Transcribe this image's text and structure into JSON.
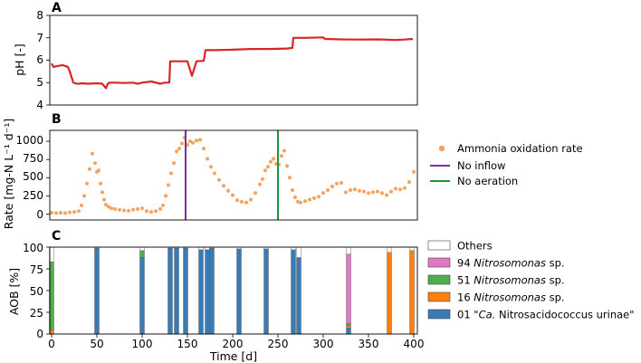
{
  "colors": {
    "ph_line": "#d62728",
    "rate_points": "#f4a460",
    "no_inflow": "#7b3294",
    "no_aeration": "#1a9641",
    "others": "#ffffff",
    "nitro94": "#e377c2",
    "nitro51": "#4daf4a",
    "nitro16": "#ff7f0e",
    "urinae01": "#3b7bb3"
  },
  "chart_data": [
    {
      "panel": "A",
      "type": "line",
      "ylabel": "pH [-]",
      "xlim": [
        -2,
        404
      ],
      "ylim": [
        4,
        8
      ],
      "yticks": [
        4,
        5,
        6,
        7,
        8
      ],
      "x": [
        0,
        2,
        4,
        8,
        12,
        18,
        20,
        24,
        28,
        30,
        34,
        40,
        50,
        56,
        60,
        62,
        64,
        70,
        80,
        90,
        95,
        100,
        110,
        120,
        125,
        128,
        130,
        131,
        140,
        150,
        155,
        160,
        168,
        170,
        180,
        200,
        220,
        240,
        260,
        266,
        267,
        280,
        300,
        302,
        320,
        340,
        360,
        380,
        390,
        399
      ],
      "values": [
        5.85,
        5.7,
        5.72,
        5.75,
        5.78,
        5.7,
        5.5,
        5.0,
        4.95,
        4.95,
        4.97,
        4.95,
        4.97,
        4.95,
        4.75,
        4.95,
        5.0,
        5.0,
        4.98,
        5.0,
        4.95,
        5.0,
        5.05,
        4.95,
        5.0,
        5.0,
        5.0,
        5.95,
        5.95,
        5.95,
        5.3,
        5.95,
        5.97,
        6.45,
        6.45,
        6.47,
        6.5,
        6.5,
        6.52,
        6.55,
        7.0,
        7.0,
        7.02,
        6.95,
        6.93,
        6.92,
        6.93,
        6.9,
        6.92,
        6.95
      ]
    },
    {
      "panel": "B",
      "type": "scatter",
      "ylabel": "Rate [mg-N L⁻¹ d⁻¹]",
      "xlim": [
        -2,
        404
      ],
      "ylim": [
        -80,
        1150
      ],
      "yticks": [
        0,
        250,
        500,
        750,
        1000
      ],
      "series": [
        {
          "name": "Ammonia oxidation rate"
        }
      ],
      "x": [
        0,
        5,
        10,
        15,
        20,
        25,
        30,
        33,
        36,
        39,
        42,
        45,
        48,
        50,
        52,
        54,
        56,
        58,
        60,
        63,
        66,
        70,
        75,
        80,
        85,
        90,
        95,
        100,
        105,
        110,
        115,
        120,
        123,
        126,
        129,
        132,
        135,
        138,
        141,
        144,
        147,
        150,
        153,
        156,
        160,
        164,
        168,
        172,
        176,
        180,
        185,
        190,
        195,
        200,
        205,
        210,
        215,
        220,
        225,
        230,
        233,
        236,
        239,
        242,
        245,
        248,
        251,
        254,
        257,
        260,
        263,
        266,
        269,
        272,
        275,
        280,
        285,
        290,
        295,
        300,
        305,
        310,
        315,
        320,
        325,
        330,
        335,
        340,
        345,
        350,
        355,
        360,
        365,
        370,
        375,
        380,
        385,
        390,
        395,
        400
      ],
      "values": [
        20,
        15,
        20,
        15,
        25,
        30,
        40,
        120,
        250,
        420,
        620,
        830,
        700,
        580,
        600,
        420,
        300,
        200,
        130,
        100,
        80,
        70,
        60,
        50,
        45,
        60,
        70,
        80,
        40,
        30,
        40,
        70,
        120,
        250,
        400,
        560,
        700,
        860,
        900,
        970,
        1050,
        950,
        1000,
        980,
        1010,
        1020,
        900,
        760,
        650,
        560,
        470,
        390,
        320,
        260,
        190,
        170,
        160,
        200,
        290,
        410,
        480,
        600,
        650,
        720,
        760,
        690,
        680,
        800,
        870,
        660,
        500,
        330,
        230,
        170,
        160,
        180,
        200,
        220,
        240,
        290,
        330,
        380,
        420,
        430,
        300,
        330,
        340,
        320,
        310,
        290,
        300,
        310,
        290,
        260,
        310,
        350,
        340,
        360,
        440,
        580
      ]
    },
    {
      "panel": "C",
      "type": "bar",
      "stacked": true,
      "xlabel": "Time [d]",
      "ylabel": "AOB [%]",
      "xlim": [
        -2,
        404
      ],
      "ylim": [
        0,
        100
      ],
      "yticks": [
        0,
        25,
        50,
        75,
        100
      ],
      "xticks": [
        0,
        50,
        100,
        150,
        200,
        250,
        300,
        350,
        400
      ],
      "x": [
        0,
        50,
        100,
        131,
        138,
        148,
        165,
        172,
        177,
        207,
        237,
        267,
        273,
        328,
        373,
        398
      ],
      "series": [
        {
          "name": "01 \"Ca. Nitrosacidococcus urinae\"",
          "values": [
            0,
            99,
            88,
            99,
            99,
            99,
            97,
            97,
            99,
            98,
            98,
            97,
            88,
            7,
            0,
            0
          ]
        },
        {
          "name": "16 Nitrosomonas sp.",
          "values": [
            5,
            0,
            0,
            0,
            0,
            0,
            0,
            0,
            0,
            0,
            0,
            0,
            0,
            3,
            94,
            96
          ]
        },
        {
          "name": "51 Nitrosomonas sp.",
          "values": [
            78,
            0,
            8,
            0,
            0,
            0,
            0,
            0,
            0,
            0,
            0,
            0,
            0,
            2,
            0,
            0
          ]
        },
        {
          "name": "94 Nitrosomonas sp.",
          "values": [
            0,
            0,
            0,
            0,
            0,
            0,
            0,
            0,
            0,
            0,
            0,
            0,
            0,
            80,
            0,
            0
          ]
        },
        {
          "name": "Others",
          "values": [
            17,
            1,
            4,
            1,
            1,
            1,
            3,
            3,
            1,
            2,
            2,
            3,
            12,
            8,
            6,
            4
          ]
        }
      ]
    }
  ],
  "figure": {
    "panels": {
      "a": "A",
      "b": "B",
      "c": "C"
    },
    "axis_a": {
      "ylabel": "pH [-]",
      "ticks": [
        "4",
        "5",
        "6",
        "7",
        "8"
      ]
    },
    "axis_b": {
      "ylabel": "Rate [mg-N L⁻¹ d⁻¹]",
      "ticks": [
        "0",
        "250",
        "500",
        "750",
        "1000"
      ]
    },
    "axis_c": {
      "ylabel": "AOB [%]",
      "yticks": [
        "0",
        "25",
        "50",
        "75",
        "100"
      ],
      "xticks": [
        "0",
        "50",
        "100",
        "150",
        "200",
        "250",
        "300",
        "350",
        "400"
      ],
      "xlabel": "Time [d]"
    },
    "events": {
      "no_inflow": {
        "label": "No inflow",
        "day": 148
      },
      "no_aeration": {
        "label": "No aeration",
        "day": 250
      }
    },
    "legend_b": {
      "rate": "Ammonia oxidation rate",
      "no_inflow": "No inflow",
      "no_aeration": "No aeration"
    },
    "legend_c": [
      {
        "number": "",
        "italic": "",
        "suffix": "Others",
        "key": "others"
      },
      {
        "number": "94 ",
        "italic": "Nitrosomonas",
        "suffix": " sp.",
        "key": "nitro94"
      },
      {
        "number": "51 ",
        "italic": "Nitrosomonas",
        "suffix": " sp.",
        "key": "nitro51"
      },
      {
        "number": "16 ",
        "italic": "Nitrosomonas",
        "suffix": " sp.",
        "key": "nitro16"
      },
      {
        "number": "01 \"",
        "italic": "Ca.",
        "suffix": " Nitrosacidococcus urinae\"",
        "key": "urinae01"
      }
    ]
  }
}
